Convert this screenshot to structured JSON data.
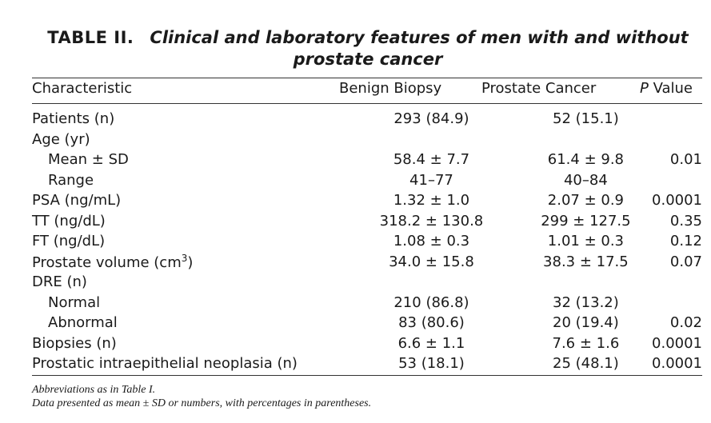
{
  "table": {
    "label": "TABLE II.",
    "caption_line1": "Clinical and laboratory features of men with and without",
    "caption_line2": "prostate cancer",
    "headers": {
      "characteristic": "Characteristic",
      "benign": "Benign Biopsy",
      "cancer": "Prostate Cancer",
      "p_italic": "P",
      "p_rest": " Value"
    },
    "rows": [
      {
        "label": "Patients (n)",
        "benign": "293 (84.9)",
        "cancer": "52 (15.1)",
        "p": ""
      },
      {
        "label": "Age (yr)",
        "benign": "",
        "cancer": "",
        "p": ""
      },
      {
        "label": "Mean ± SD",
        "benign": "58.4 ± 7.7",
        "cancer": "61.4 ± 9.8",
        "p": "0.01"
      },
      {
        "label": "Range",
        "benign": "41–77",
        "cancer": "40–84",
        "p": ""
      },
      {
        "label": "PSA (ng/mL)",
        "benign": "1.32 ± 1.0",
        "cancer": "2.07 ± 0.9",
        "p": "0.0001"
      },
      {
        "label": "TT (ng/dL)",
        "benign": "318.2 ± 130.8",
        "cancer": "299 ± 127.5",
        "p": "0.35"
      },
      {
        "label": "FT (ng/dL)",
        "benign": "1.08 ± 0.3",
        "cancer": "1.01 ± 0.3",
        "p": "0.12"
      },
      {
        "label": "Prostate volume (cm",
        "label_sup": "3",
        "label_end": ")",
        "benign": "34.0 ± 15.8",
        "cancer": "38.3 ± 17.5",
        "p": "0.07"
      },
      {
        "label": "DRE (n)",
        "benign": "",
        "cancer": "",
        "p": ""
      },
      {
        "label": "Normal",
        "benign": "210 (86.8)",
        "cancer": "32 (13.2)",
        "p": ""
      },
      {
        "label": "Abnormal",
        "benign": "83 (80.6)",
        "cancer": "20 (19.4)",
        "p": "0.02"
      },
      {
        "label": "Biopsies (n)",
        "benign": "6.6 ± 1.1",
        "cancer": "7.6 ± 1.6",
        "p": "0.0001"
      },
      {
        "label": "Prostatic intraepithelial neoplasia (n)",
        "benign": "53 (18.1)",
        "cancer": "25 (48.1)",
        "p": "0.0001"
      }
    ],
    "footnote1_prefix": "Abbreviations as in ",
    "footnote1_ref": "Table I",
    "footnote1_suffix": ".",
    "footnote2": "Data presented as mean ± SD or numbers, with percentages in parentheses."
  }
}
